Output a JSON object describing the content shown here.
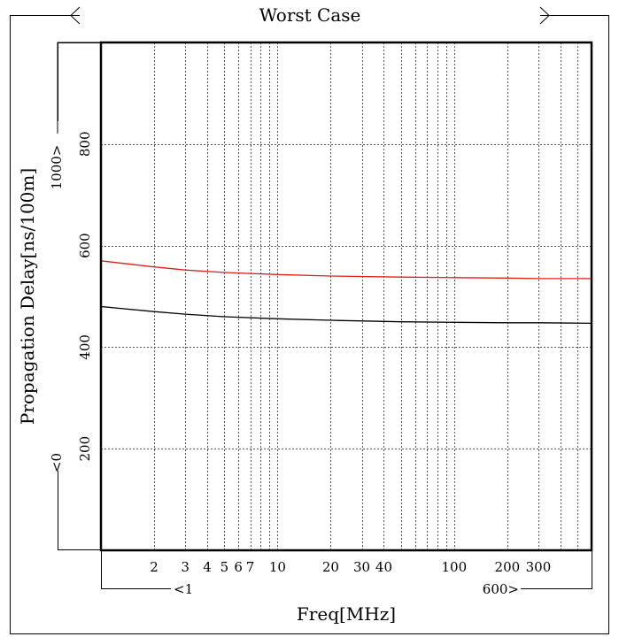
{
  "chart_data": {
    "type": "line",
    "title": "Worst Case",
    "xlabel": "Freq[MHz]",
    "ylabel": "Propagation Delay[ns/100m]",
    "x_scale": "log",
    "xlim": [
      1,
      600
    ],
    "ylim": [
      0,
      1000
    ],
    "x_range_labels": {
      "min": "<1",
      "max": "600>"
    },
    "y_range_labels": {
      "min": "<0",
      "max": "1000>"
    },
    "x_ticks": [
      {
        "value": 2,
        "label": "2"
      },
      {
        "value": 3,
        "label": "3"
      },
      {
        "value": 4,
        "label": "4"
      },
      {
        "value": 5,
        "label": "5"
      },
      {
        "value": 6,
        "label": "6"
      },
      {
        "value": 7,
        "label": "7"
      },
      {
        "value": 10,
        "label": "10"
      },
      {
        "value": 20,
        "label": "20"
      },
      {
        "value": 30,
        "label": "30"
      },
      {
        "value": 40,
        "label": "40"
      },
      {
        "value": 100,
        "label": "100"
      },
      {
        "value": 200,
        "label": "200"
      },
      {
        "value": 300,
        "label": "300"
      }
    ],
    "x_grid": [
      2,
      3,
      4,
      5,
      6,
      7,
      8,
      9,
      10,
      20,
      30,
      40,
      50,
      60,
      70,
      80,
      90,
      100,
      200,
      300,
      400,
      500
    ],
    "y_ticks": [
      {
        "value": 200,
        "label": "200"
      },
      {
        "value": 400,
        "label": "400"
      },
      {
        "value": 600,
        "label": "600"
      },
      {
        "value": 800,
        "label": "800"
      }
    ],
    "grid": true,
    "series": [
      {
        "color": "#e0201b",
        "x": [
          1,
          2,
          3,
          5,
          10,
          20,
          50,
          100,
          200,
          300,
          600
        ],
        "y": [
          570,
          558,
          552,
          547,
          543,
          540,
          538,
          537,
          536,
          535,
          535
        ]
      },
      {
        "color": "#000000",
        "x": [
          1,
          2,
          3,
          5,
          10,
          20,
          50,
          100,
          200,
          300,
          600
        ],
        "y": [
          480,
          470,
          465,
          460,
          456,
          453,
          450,
          449,
          448,
          448,
          447
        ]
      }
    ]
  }
}
